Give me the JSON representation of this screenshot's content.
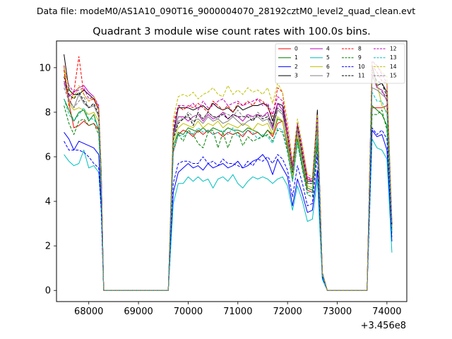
{
  "suptitle": "Data file: modeM0/AS1A10_090T16_9000004070_28192cztM0_level2_quad_clean.evt",
  "chart_data": {
    "type": "line",
    "title": "Quadrant 3 module wise count rates with 100.0s bins.",
    "xlabel": "",
    "ylabel": "",
    "x_offset_label": "+3.456e8",
    "xlim": [
      67350,
      74400
    ],
    "ylim": [
      -0.5,
      11.2
    ],
    "xticks": [
      68000,
      69000,
      70000,
      71000,
      72000,
      73000,
      74000
    ],
    "xtick_labels": [
      "68000",
      "69000",
      "70000",
      "71000",
      "72000",
      "73000",
      "74000"
    ],
    "yticks": [
      0,
      2,
      4,
      6,
      8,
      10
    ],
    "ytick_labels": [
      "0",
      "2",
      "4",
      "6",
      "8",
      "10"
    ],
    "grid": false,
    "legend_position": "top-right",
    "x": [
      67500,
      67600,
      67700,
      67800,
      67900,
      68000,
      68100,
      68200,
      68250,
      68300,
      69600,
      69700,
      69800,
      69900,
      70000,
      70100,
      70200,
      70300,
      70400,
      70500,
      70600,
      70700,
      70800,
      70900,
      71000,
      71100,
      71200,
      71300,
      71400,
      71500,
      71600,
      71700,
      71800,
      71900,
      72000,
      72100,
      72200,
      72300,
      72400,
      72500,
      72600,
      72700,
      72800,
      72900,
      73000,
      73600,
      73700,
      73800,
      73900,
      74000,
      74100
    ],
    "series": [
      {
        "name": "0",
        "color": "#ff0000",
        "dashed": false,
        "values": [
          10.1,
          8.4,
          7.3,
          7.4,
          7.6,
          7.4,
          7.5,
          7.2,
          4.8,
          0.0,
          0.0,
          6.2,
          7.0,
          7.2,
          7.1,
          6.9,
          7.2,
          7.0,
          7.2,
          7.0,
          7.1,
          6.9,
          7.1,
          7.0,
          7.1,
          6.9,
          7.2,
          7.0,
          7.1,
          6.9,
          7.2,
          6.9,
          7.5,
          7.6,
          6.4,
          5.0,
          6.8,
          5.5,
          4.5,
          4.4,
          6.6,
          0.7,
          0.0,
          0.0,
          0.0,
          0.0,
          8.2,
          8.2,
          8.2,
          8.3,
          2.8
        ]
      },
      {
        "name": "1",
        "color": "#008000",
        "dashed": false,
        "values": [
          8.6,
          8.1,
          7.6,
          8.0,
          8.1,
          7.6,
          7.9,
          7.2,
          4.9,
          0.0,
          0.0,
          6.5,
          7.1,
          7.0,
          7.3,
          7.2,
          7.1,
          7.3,
          7.1,
          7.3,
          7.2,
          7.1,
          7.3,
          7.2,
          7.2,
          7.1,
          7.3,
          7.2,
          7.1,
          6.9,
          7.2,
          7.0,
          7.7,
          7.6,
          6.5,
          5.0,
          6.8,
          5.6,
          4.6,
          4.5,
          6.8,
          0.7,
          0.0,
          0.0,
          0.0,
          0.0,
          8.3,
          8.1,
          7.9,
          7.4,
          2.7
        ]
      },
      {
        "name": "2",
        "color": "#0000ff",
        "dashed": false,
        "values": [
          7.1,
          6.8,
          6.3,
          6.7,
          6.6,
          6.5,
          6.4,
          6.1,
          3.9,
          0.0,
          0.0,
          4.4,
          5.3,
          5.5,
          5.7,
          5.5,
          5.6,
          5.4,
          5.7,
          5.5,
          5.6,
          5.7,
          5.5,
          5.6,
          5.8,
          5.5,
          5.6,
          5.8,
          5.9,
          6.1,
          5.8,
          5.2,
          5.9,
          5.5,
          5.1,
          3.8,
          5.0,
          4.3,
          3.5,
          3.6,
          5.4,
          0.6,
          0.0,
          0.0,
          0.0,
          0.0,
          7.2,
          6.9,
          7.0,
          6.3,
          2.2
        ]
      },
      {
        "name": "3",
        "color": "#000000",
        "dashed": false,
        "values": [
          10.6,
          9.0,
          8.8,
          8.8,
          9.0,
          8.8,
          8.6,
          8.1,
          5.3,
          0.0,
          0.0,
          7.0,
          8.2,
          8.2,
          8.2,
          8.1,
          8.2,
          8.3,
          8.1,
          8.4,
          8.2,
          8.1,
          8.2,
          8.0,
          8.3,
          8.1,
          8.2,
          8.3,
          8.3,
          8.4,
          8.3,
          7.6,
          8.4,
          8.3,
          7.0,
          5.5,
          7.3,
          6.1,
          4.9,
          4.9,
          8.1,
          0.8,
          0.0,
          0.0,
          0.0,
          0.0,
          10.1,
          9.2,
          9.3,
          8.9,
          3.0
        ]
      },
      {
        "name": "4",
        "color": "#bf00bf",
        "dashed": false,
        "values": [
          9.4,
          8.7,
          8.9,
          9.1,
          9.2,
          8.9,
          8.7,
          8.2,
          5.3,
          0.0,
          0.0,
          7.0,
          7.8,
          7.8,
          7.6,
          7.8,
          7.9,
          7.6,
          7.9,
          7.7,
          7.8,
          8.0,
          7.7,
          7.9,
          7.8,
          7.6,
          7.9,
          7.8,
          7.9,
          7.8,
          8.0,
          7.3,
          8.4,
          8.1,
          7.0,
          5.4,
          7.2,
          6.1,
          5.0,
          4.9,
          7.6,
          0.8,
          0.0,
          0.0,
          0.0,
          0.0,
          9.7,
          9.1,
          9.0,
          8.5,
          2.9
        ]
      },
      {
        "name": "5",
        "color": "#00bfbf",
        "dashed": false,
        "values": [
          6.1,
          5.8,
          5.6,
          5.7,
          6.3,
          5.5,
          5.6,
          5.3,
          3.6,
          0.0,
          0.0,
          3.9,
          4.8,
          4.8,
          5.1,
          4.9,
          5.1,
          4.9,
          5.0,
          4.6,
          5.0,
          5.1,
          4.9,
          5.2,
          4.8,
          4.6,
          4.9,
          5.1,
          5.0,
          5.1,
          5.0,
          4.8,
          5.0,
          5.1,
          4.7,
          3.6,
          4.7,
          4.0,
          3.1,
          3.2,
          5.0,
          0.5,
          0.0,
          0.0,
          0.0,
          0.0,
          6.8,
          6.4,
          6.3,
          5.9,
          1.7
        ]
      },
      {
        "name": "6",
        "color": "#bfbf00",
        "dashed": false,
        "values": [
          10.0,
          8.4,
          8.1,
          8.2,
          8.1,
          7.9,
          8.0,
          7.6,
          5.1,
          0.0,
          0.0,
          6.7,
          7.3,
          7.5,
          7.4,
          7.3,
          7.6,
          7.3,
          7.5,
          7.4,
          7.6,
          7.3,
          7.5,
          7.4,
          7.3,
          7.5,
          7.4,
          7.2,
          7.5,
          7.4,
          7.5,
          7.0,
          7.8,
          7.6,
          6.6,
          5.1,
          7.0,
          5.8,
          4.7,
          4.6,
          7.3,
          0.7,
          0.0,
          0.0,
          0.0,
          0.0,
          9.6,
          9.3,
          8.3,
          8.0,
          2.8
        ]
      },
      {
        "name": "7",
        "color": "#808080",
        "dashed": false,
        "values": [
          9.3,
          8.6,
          8.2,
          8.8,
          8.4,
          8.2,
          8.3,
          7.8,
          5.2,
          0.0,
          0.0,
          6.9,
          7.6,
          7.7,
          7.8,
          7.6,
          7.7,
          7.5,
          7.8,
          7.6,
          7.7,
          7.5,
          7.6,
          7.8,
          7.6,
          7.4,
          7.6,
          7.7,
          7.8,
          7.6,
          7.7,
          7.2,
          8.1,
          7.9,
          6.8,
          5.3,
          7.2,
          5.9,
          4.8,
          4.8,
          7.4,
          0.7,
          0.0,
          0.0,
          0.0,
          0.0,
          9.1,
          9.0,
          8.8,
          8.6,
          2.9
        ]
      },
      {
        "name": "8",
        "color": "#ff0000",
        "dashed": true,
        "values": [
          9.9,
          8.3,
          8.9,
          10.5,
          8.8,
          8.5,
          8.6,
          8.1,
          5.3,
          0.0,
          0.0,
          7.5,
          8.3,
          8.1,
          8.3,
          8.2,
          8.4,
          8.2,
          8.0,
          8.5,
          8.3,
          8.1,
          8.3,
          8.0,
          8.4,
          8.3,
          8.5,
          8.3,
          8.6,
          8.5,
          8.2,
          7.8,
          9.1,
          8.9,
          7.0,
          5.6,
          7.4,
          6.3,
          5.0,
          5.0,
          7.6,
          0.8,
          0.0,
          0.0,
          0.0,
          0.0,
          10.1,
          9.8,
          9.4,
          9.3,
          3.0
        ]
      },
      {
        "name": "9",
        "color": "#008000",
        "dashed": true,
        "values": [
          8.3,
          7.5,
          7.0,
          7.6,
          7.7,
          7.4,
          7.5,
          7.0,
          4.7,
          0.0,
          0.0,
          6.3,
          7.0,
          6.7,
          7.2,
          7.0,
          6.6,
          6.4,
          7.1,
          7.2,
          6.4,
          7.1,
          6.4,
          7.0,
          7.1,
          6.5,
          6.9,
          6.7,
          6.8,
          6.9,
          7.0,
          6.7,
          7.2,
          7.1,
          6.2,
          4.9,
          6.6,
          5.4,
          4.3,
          4.2,
          6.5,
          0.7,
          0.0,
          0.0,
          0.0,
          0.0,
          7.9,
          7.9,
          8.1,
          7.2,
          2.6
        ]
      },
      {
        "name": "10",
        "color": "#0000ff",
        "dashed": true,
        "values": [
          6.7,
          6.3,
          6.3,
          6.3,
          6.2,
          6.0,
          5.7,
          5.5,
          3.6,
          0.0,
          0.0,
          4.8,
          5.7,
          5.8,
          5.8,
          5.7,
          5.7,
          6.0,
          5.7,
          5.8,
          5.6,
          5.9,
          5.7,
          5.7,
          5.6,
          5.5,
          5.8,
          5.6,
          5.9,
          5.8,
          6.0,
          5.7,
          6.1,
          5.9,
          5.4,
          4.2,
          5.6,
          4.8,
          3.8,
          3.9,
          6.1,
          0.6,
          0.0,
          0.0,
          0.0,
          0.0,
          7.3,
          7.0,
          7.2,
          6.8,
          2.4
        ]
      },
      {
        "name": "11",
        "color": "#000000",
        "dashed": true,
        "values": [
          9.6,
          8.8,
          8.6,
          8.9,
          8.5,
          8.2,
          8.4,
          7.9,
          5.2,
          0.0,
          0.0,
          6.8,
          7.5,
          7.7,
          7.9,
          7.4,
          8.0,
          7.7,
          8.0,
          7.8,
          7.8,
          7.9,
          7.7,
          7.9,
          7.8,
          7.8,
          7.8,
          7.6,
          7.9,
          7.7,
          7.8,
          7.4,
          8.2,
          8.0,
          6.9,
          5.3,
          7.4,
          6.0,
          4.8,
          4.8,
          7.7,
          0.8,
          0.0,
          0.0,
          0.0,
          0.0,
          9.8,
          9.4,
          9.3,
          8.7,
          2.9
        ]
      },
      {
        "name": "12",
        "color": "#bf00bf",
        "dashed": true,
        "values": [
          10.0,
          9.2,
          8.9,
          9.0,
          9.1,
          8.6,
          8.7,
          8.3,
          5.4,
          0.0,
          0.0,
          7.2,
          8.3,
          8.3,
          8.2,
          8.4,
          8.1,
          8.5,
          8.2,
          8.3,
          8.5,
          8.6,
          8.3,
          8.4,
          8.5,
          8.3,
          8.4,
          8.5,
          8.6,
          8.3,
          8.4,
          7.9,
          8.7,
          8.5,
          7.3,
          5.6,
          7.5,
          6.4,
          5.1,
          5.0,
          7.9,
          0.8,
          0.0,
          0.0,
          0.0,
          0.0,
          10.3,
          10.1,
          9.7,
          9.3,
          3.1
        ]
      },
      {
        "name": "13",
        "color": "#00bfbf",
        "dashed": true,
        "values": [
          8.6,
          7.9,
          7.6,
          7.9,
          8.2,
          7.7,
          7.7,
          7.3,
          4.9,
          0.0,
          0.0,
          6.2,
          7.0,
          6.9,
          7.1,
          7.0,
          7.3,
          7.1,
          7.2,
          7.0,
          7.1,
          7.2,
          7.0,
          7.3,
          6.9,
          7.0,
          7.2,
          7.1,
          6.8,
          7.0,
          6.9,
          6.6,
          7.3,
          7.2,
          6.3,
          4.9,
          6.7,
          5.5,
          4.4,
          4.4,
          6.9,
          0.7,
          0.0,
          0.0,
          0.0,
          0.0,
          8.9,
          8.5,
          8.5,
          7.9,
          2.6
        ]
      },
      {
        "name": "14",
        "color": "#bfbf00",
        "dashed": true,
        "values": [
          10.0,
          9.1,
          8.6,
          9.2,
          8.8,
          8.5,
          8.7,
          8.2,
          5.4,
          0.0,
          0.0,
          7.7,
          8.7,
          8.8,
          8.7,
          8.9,
          8.6,
          8.8,
          8.9,
          9.1,
          8.8,
          8.7,
          9.2,
          8.8,
          9.0,
          8.8,
          9.1,
          8.9,
          9.0,
          8.8,
          9.1,
          8.4,
          9.3,
          8.9,
          7.6,
          5.8,
          7.7,
          6.5,
          5.2,
          5.1,
          7.9,
          0.8,
          0.0,
          0.0,
          0.0,
          0.0,
          10.2,
          10.1,
          9.8,
          9.6,
          3.1
        ]
      },
      {
        "name": "15",
        "color": "#808080",
        "dashed": true,
        "values": [
          9.1,
          8.5,
          8.2,
          8.5,
          8.7,
          8.2,
          8.3,
          7.8,
          5.1,
          0.0,
          0.0,
          6.9,
          7.8,
          7.7,
          8.0,
          7.8,
          7.9,
          7.7,
          8.0,
          7.8,
          7.7,
          8.0,
          7.9,
          7.8,
          8.1,
          7.8,
          7.9,
          7.7,
          8.0,
          7.8,
          7.9,
          7.5,
          8.2,
          8.0,
          6.9,
          5.4,
          7.3,
          6.1,
          4.8,
          4.8,
          7.5,
          0.8,
          0.0,
          0.0,
          0.0,
          0.0,
          9.6,
          9.2,
          8.9,
          8.7,
          2.9
        ]
      }
    ]
  }
}
